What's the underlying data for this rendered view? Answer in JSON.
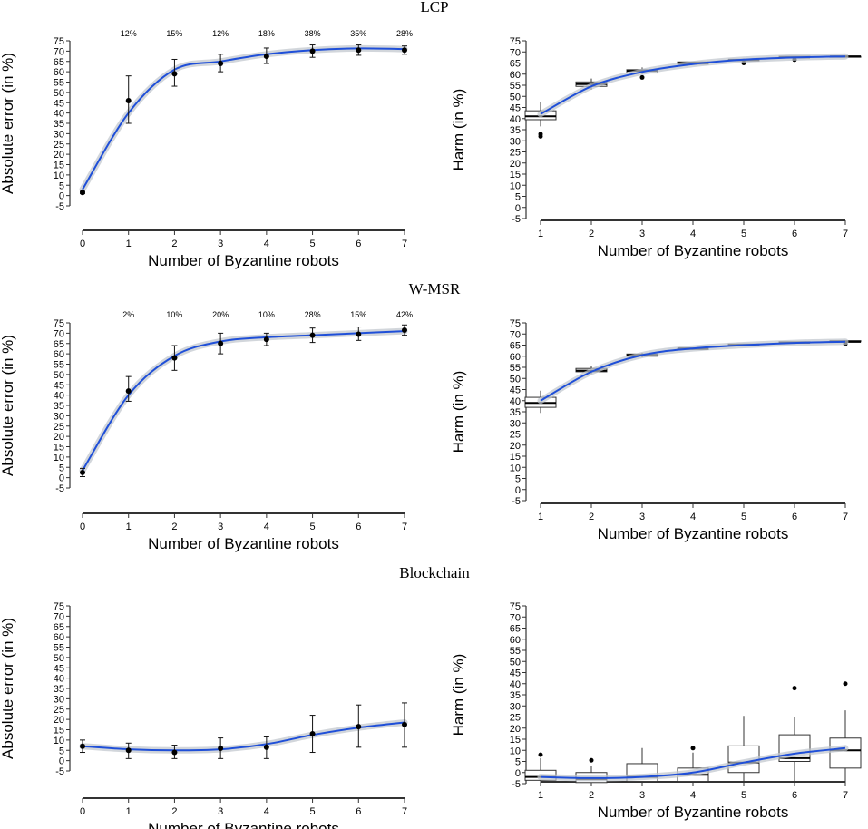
{
  "panels": [
    {
      "section": "LCP",
      "chart_data": [
        {
          "type": "scatter",
          "title": "LCP",
          "xlabel": "Number of Byzantine robots",
          "ylabel": "Absolute error (in %)",
          "xlim": [
            0,
            7
          ],
          "ylim": [
            -5,
            75
          ],
          "x_ticks": [
            "0",
            "1",
            "2",
            "3",
            "4",
            "5",
            "6",
            "7"
          ],
          "y_ticks": [
            "75",
            "70",
            "65",
            "60",
            "55",
            "50",
            "45",
            "40",
            "35",
            "30",
            "25",
            "20",
            "15",
            "10",
            "5",
            "0",
            "-5"
          ],
          "x": [
            0,
            1,
            2,
            3,
            4,
            5,
            6,
            7
          ],
          "y": [
            1.5,
            46,
            59,
            64,
            67.5,
            70,
            70.5,
            70.5
          ],
          "err_low": [
            1,
            35,
            53,
            60,
            64,
            67,
            68,
            68.5
          ],
          "err_high": [
            2,
            58,
            66,
            68.5,
            71.5,
            73,
            73,
            72.5
          ],
          "fit": [
            [
              0,
              3
            ],
            [
              1,
              40
            ],
            [
              2,
              61
            ],
            [
              3,
              65
            ],
            [
              4,
              68.5
            ],
            [
              5,
              70.5
            ],
            [
              6,
              71.3
            ],
            [
              7,
              71
            ]
          ],
          "annotations": [
            "12%",
            "15%",
            "12%",
            "18%",
            "38%",
            "35%",
            "28%"
          ],
          "annotation_x": [
            1,
            2,
            3,
            4,
            5,
            6,
            7
          ]
        },
        {
          "type": "box",
          "xlabel": "Number of Byzantine robots",
          "ylabel": "Harm (in %)",
          "xlim": [
            1,
            7
          ],
          "ylim": [
            -5,
            75
          ],
          "x_ticks": [
            "1",
            "2",
            "3",
            "4",
            "5",
            "6",
            "7"
          ],
          "y_ticks": [
            "75",
            "70",
            "65",
            "60",
            "55",
            "50",
            "45",
            "40",
            "35",
            "30",
            "25",
            "20",
            "15",
            "10",
            "5",
            "0",
            "-5"
          ],
          "boxes": [
            {
              "x": 1,
              "min": 36.5,
              "q1": 39.5,
              "median": 41,
              "q3": 43.5,
              "max": 47.5,
              "outliers": [
                32,
                33
              ]
            },
            {
              "x": 2,
              "min": 53,
              "q1": 54.5,
              "median": 55.5,
              "q3": 56.5,
              "max": 58,
              "outliers": []
            },
            {
              "x": 3,
              "min": 60,
              "q1": 60.5,
              "median": 61.5,
              "q3": 62,
              "max": 63,
              "outliers": [
                58.5
              ]
            },
            {
              "x": 4,
              "min": 64.5,
              "q1": 64.5,
              "median": 65,
              "q3": 65.5,
              "max": 65.5,
              "outliers": []
            },
            {
              "x": 5,
              "min": 66,
              "q1": 66,
              "median": 66.5,
              "q3": 66.5,
              "max": 67,
              "outliers": [
                65
              ]
            },
            {
              "x": 6,
              "min": 67.5,
              "q1": 67.5,
              "median": 67.5,
              "q3": 68,
              "max": 68,
              "outliers": [
                66.5
              ]
            },
            {
              "x": 7,
              "min": 68,
              "q1": 68,
              "median": 68,
              "q3": 68,
              "max": 68,
              "outliers": []
            }
          ],
          "fit": [
            [
              1,
              42
            ],
            [
              2,
              54.5
            ],
            [
              3,
              61
            ],
            [
              4,
              64.5
            ],
            [
              5,
              66.5
            ],
            [
              6,
              67.5
            ],
            [
              7,
              68
            ]
          ]
        }
      ]
    },
    {
      "section": "W-MSR",
      "chart_data": [
        {
          "type": "scatter",
          "title": "W-MSR",
          "xlabel": "Number of Byzantine robots",
          "ylabel": "Absolute error (in %)",
          "xlim": [
            0,
            7
          ],
          "ylim": [
            -5,
            75
          ],
          "x_ticks": [
            "0",
            "1",
            "2",
            "3",
            "4",
            "5",
            "6",
            "7"
          ],
          "y_ticks": [
            "75",
            "70",
            "65",
            "60",
            "55",
            "50",
            "45",
            "40",
            "35",
            "30",
            "25",
            "20",
            "15",
            "10",
            "5",
            "0",
            "-5"
          ],
          "x": [
            0,
            1,
            2,
            3,
            4,
            5,
            6,
            7
          ],
          "y": [
            2.5,
            42,
            58,
            65,
            67,
            69,
            69.5,
            71.5
          ],
          "err_low": [
            0.5,
            37,
            52,
            60,
            64,
            65.5,
            66.5,
            69
          ],
          "err_high": [
            4.5,
            49,
            64,
            70,
            70,
            72.5,
            73,
            74
          ],
          "fit": [
            [
              0,
              3.5
            ],
            [
              1,
              40
            ],
            [
              2,
              59
            ],
            [
              3,
              66
            ],
            [
              4,
              68
            ],
            [
              5,
              69
            ],
            [
              6,
              70
            ],
            [
              7,
              71
            ]
          ],
          "annotations": [
            "2%",
            "10%",
            "20%",
            "10%",
            "28%",
            "15%",
            "42%"
          ],
          "annotation_x": [
            1,
            2,
            3,
            4,
            5,
            6,
            7
          ]
        },
        {
          "type": "box",
          "xlabel": "Number of Byzantine robots",
          "ylabel": "Harm (in %)",
          "xlim": [
            1,
            7
          ],
          "ylim": [
            -5,
            75
          ],
          "x_ticks": [
            "1",
            "2",
            "3",
            "4",
            "5",
            "6",
            "7"
          ],
          "y_ticks": [
            "75",
            "70",
            "65",
            "60",
            "55",
            "50",
            "45",
            "40",
            "35",
            "30",
            "25",
            "20",
            "15",
            "10",
            "5",
            "0",
            "-5"
          ],
          "boxes": [
            {
              "x": 1,
              "min": 34.5,
              "q1": 37,
              "median": 39,
              "q3": 41.5,
              "max": 44.5,
              "outliers": []
            },
            {
              "x": 2,
              "min": 52,
              "q1": 53,
              "median": 53.5,
              "q3": 54.5,
              "max": 55.5,
              "outliers": []
            },
            {
              "x": 3,
              "min": 59.5,
              "q1": 60,
              "median": 60.5,
              "q3": 61,
              "max": 61.5,
              "outliers": []
            },
            {
              "x": 4,
              "min": 63,
              "q1": 63,
              "median": 63.5,
              "q3": 63.5,
              "max": 64,
              "outliers": []
            },
            {
              "x": 5,
              "min": 65,
              "q1": 65,
              "median": 65,
              "q3": 65.5,
              "max": 65.5,
              "outliers": []
            },
            {
              "x": 6,
              "min": 66,
              "q1": 66,
              "median": 66,
              "q3": 66.5,
              "max": 66.5,
              "outliers": []
            },
            {
              "x": 7,
              "min": 66.5,
              "q1": 66.5,
              "median": 66.5,
              "q3": 67,
              "max": 67,
              "outliers": [
                65.5
              ]
            }
          ],
          "fit": [
            [
              1,
              40
            ],
            [
              2,
              53
            ],
            [
              3,
              60.5
            ],
            [
              4,
              63.5
            ],
            [
              5,
              65
            ],
            [
              6,
              66
            ],
            [
              7,
              66.5
            ]
          ]
        }
      ]
    },
    {
      "section": "Blockchain",
      "chart_data": [
        {
          "type": "scatter",
          "title": "Blockchain",
          "xlabel": "Number of Byzantine robots",
          "ylabel": "Absolute error (in %)",
          "xlim": [
            0,
            7
          ],
          "ylim": [
            -5,
            75
          ],
          "x_ticks": [
            "0",
            "1",
            "2",
            "3",
            "4",
            "5",
            "6",
            "7"
          ],
          "y_ticks": [
            "75",
            "70",
            "65",
            "60",
            "55",
            "50",
            "45",
            "40",
            "35",
            "30",
            "25",
            "20",
            "15",
            "10",
            "5",
            "0",
            "-5"
          ],
          "x": [
            0,
            1,
            2,
            3,
            4,
            5,
            6,
            7
          ],
          "y": [
            7,
            5,
            4,
            6,
            6.5,
            13,
            16.5,
            17.5
          ],
          "err_low": [
            4,
            1,
            1,
            1,
            1,
            4,
            6.5,
            6.5
          ],
          "err_high": [
            10,
            8.5,
            7.5,
            11,
            11.5,
            22,
            27,
            28
          ],
          "fit": [
            [
              0,
              7
            ],
            [
              1,
              5.5
            ],
            [
              2,
              5
            ],
            [
              3,
              5.5
            ],
            [
              4,
              8
            ],
            [
              5,
              12.5
            ],
            [
              6,
              16
            ],
            [
              7,
              18.5
            ]
          ],
          "annotations": [],
          "annotation_x": []
        },
        {
          "type": "box",
          "xlabel": "Number of Byzantine robots",
          "ylabel": "Harm (in %)",
          "xlim": [
            1,
            7
          ],
          "ylim": [
            -5,
            75
          ],
          "x_ticks": [
            "1",
            "2",
            "3",
            "4",
            "5",
            "6",
            "7"
          ],
          "y_ticks": [
            "75",
            "70",
            "65",
            "60",
            "55",
            "50",
            "45",
            "40",
            "35",
            "30",
            "25",
            "20",
            "15",
            "10",
            "5",
            "0",
            "-5"
          ],
          "boxes": [
            {
              "x": 1,
              "min": -5,
              "q1": -3.5,
              "median": -2,
              "q3": 1,
              "max": 6.5,
              "outliers": [
                8
              ]
            },
            {
              "x": 2,
              "min": -5,
              "q1": -4.5,
              "median": -3,
              "q3": 0,
              "max": 3,
              "outliers": [
                5.5
              ]
            },
            {
              "x": 3,
              "min": -5,
              "q1": -4,
              "median": -2,
              "q3": 4,
              "max": 11,
              "outliers": []
            },
            {
              "x": 4,
              "min": -5,
              "q1": -4,
              "median": -1,
              "q3": 2,
              "max": 9,
              "outliers": [
                11
              ]
            },
            {
              "x": 5,
              "min": -5,
              "q1": 0,
              "median": 4.5,
              "q3": 12,
              "max": 25.5,
              "outliers": []
            },
            {
              "x": 6,
              "min": -5,
              "q1": 5,
              "median": 6.5,
              "q3": 17,
              "max": 25,
              "outliers": [
                38
              ]
            },
            {
              "x": 7,
              "min": -5,
              "q1": 2,
              "median": 10,
              "q3": 15.5,
              "max": 28,
              "outliers": [
                40
              ]
            }
          ],
          "fit": [
            [
              1,
              -2
            ],
            [
              2,
              -2.5
            ],
            [
              3,
              -2
            ],
            [
              4,
              0
            ],
            [
              5,
              4.5
            ],
            [
              6,
              8.5
            ],
            [
              7,
              11
            ]
          ]
        }
      ]
    }
  ]
}
